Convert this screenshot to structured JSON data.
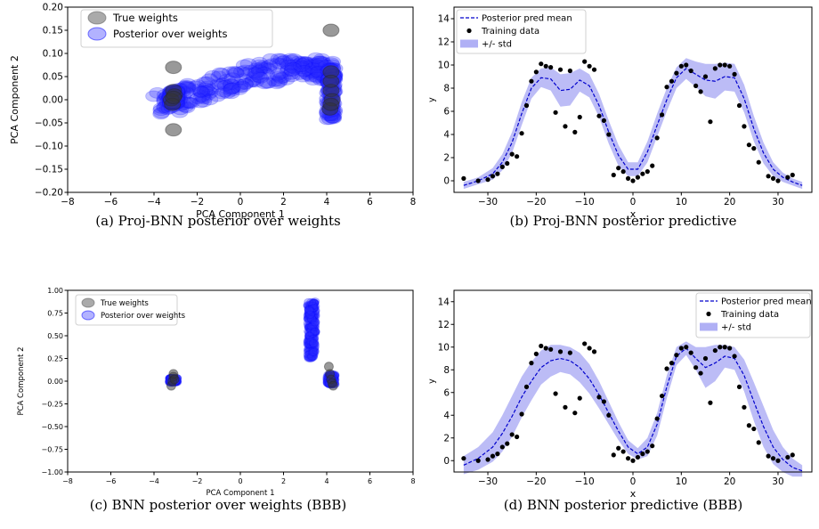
{
  "chart_data": [
    {
      "id": "a",
      "type": "scatter",
      "xlabel": "PCA Component 1",
      "ylabel": "PCA Component 2",
      "xlim": [
        -8,
        8
      ],
      "ylim": [
        -0.2,
        0.2
      ],
      "xticks": [
        -8,
        -6,
        -4,
        -2,
        0,
        2,
        4,
        6,
        8
      ],
      "xtick_labels": [
        "−8",
        "−6",
        "−4",
        "−2",
        "0",
        "2",
        "4",
        "6",
        "8"
      ],
      "yticks": [
        -0.2,
        -0.15,
        -0.1,
        -0.05,
        0,
        0.05,
        0.1,
        0.15,
        0.2
      ],
      "ytick_labels": [
        "−0.20",
        "−0.15",
        "−0.10",
        "−0.05",
        "0.00",
        "0.05",
        "0.10",
        "0.15",
        "0.20"
      ],
      "legend_position": "top-left",
      "legend": [
        {
          "label": "True weights",
          "color": "#555555",
          "marker": "ellipse"
        },
        {
          "label": "Posterior over weights",
          "color": "#0000ff",
          "marker": "ellipse"
        }
      ],
      "true_weights": {
        "x": [
          -3.1,
          -3.1,
          -3.1,
          -3.2,
          -3.05,
          -3.15,
          -3.1,
          4.2,
          4.2,
          4.2,
          4.25,
          4.15,
          4.2,
          4.2
        ],
        "y": [
          0.07,
          -0.065,
          0.02,
          0.0,
          0.01,
          -0.01,
          0.005,
          0.15,
          0.06,
          0.02,
          0.0,
          -0.02,
          0.04,
          -0.01
        ]
      },
      "posterior_curve": {
        "x": [
          -3.6,
          -3.0,
          -2.0,
          -1.0,
          0.0,
          1.0,
          2.0,
          3.0,
          3.6,
          4.2
        ],
        "y": [
          -0.01,
          0.0,
          0.015,
          0.03,
          0.045,
          0.055,
          0.065,
          0.07,
          0.065,
          0.06
        ]
      },
      "posterior_clusters": [
        {
          "x": -3.1,
          "y_range": [
            -0.01,
            0.02
          ]
        },
        {
          "x": 4.2,
          "y_range": [
            -0.045,
            0.07
          ]
        }
      ],
      "caption": "(a) Proj-BNN posterior over weights"
    },
    {
      "id": "b",
      "type": "line",
      "xlabel": "x",
      "ylabel": "y",
      "xlim": [
        -37,
        37
      ],
      "ylim": [
        -1,
        15
      ],
      "xticks": [
        -30,
        -20,
        -10,
        0,
        10,
        20,
        30
      ],
      "xtick_labels": [
        "−30",
        "−20",
        "−10",
        "0",
        "10",
        "20",
        "30"
      ],
      "yticks": [
        0,
        2,
        4,
        6,
        8,
        10,
        12,
        14
      ],
      "ytick_labels": [
        "0",
        "2",
        "4",
        "6",
        "8",
        "10",
        "12",
        "14"
      ],
      "legend_position": "top-left",
      "legend": [
        {
          "label": "Posterior pred mean",
          "color": "#0000cc",
          "marker": "dashed-line"
        },
        {
          "label": "Training data",
          "color": "#000000",
          "marker": "dot"
        },
        {
          "label": "+/- std",
          "color": "#b0b0f5",
          "marker": "patch"
        }
      ],
      "mean": {
        "x": [
          -35,
          -32,
          -29,
          -27,
          -25,
          -23,
          -21,
          -19,
          -17,
          -15,
          -13,
          -11,
          -9,
          -7,
          -5,
          -3,
          -1,
          1,
          3,
          5,
          7,
          9,
          11,
          13,
          15,
          17,
          19,
          21,
          23,
          25,
          27,
          29,
          31,
          33,
          35
        ],
        "y": [
          -0.4,
          0.0,
          0.6,
          1.6,
          3.3,
          5.8,
          8.0,
          8.9,
          8.8,
          7.8,
          7.9,
          8.7,
          8.2,
          6.5,
          4.2,
          2.2,
          1.0,
          1.0,
          2.5,
          4.8,
          7.0,
          8.9,
          9.7,
          9.2,
          8.7,
          8.6,
          9.0,
          8.9,
          7.1,
          4.5,
          2.4,
          1.0,
          0.3,
          -0.1,
          -0.4
        ]
      },
      "std": [
        0.3,
        0.3,
        0.5,
        0.7,
        0.9,
        1.0,
        0.9,
        0.8,
        1.0,
        1.4,
        1.4,
        1.0,
        1.0,
        1.0,
        1.0,
        0.9,
        0.6,
        0.6,
        0.9,
        1.0,
        1.0,
        0.9,
        0.9,
        1.1,
        1.4,
        1.5,
        1.2,
        1.2,
        1.2,
        1.1,
        0.9,
        0.6,
        0.4,
        0.3,
        0.3
      ],
      "training": {
        "x": [
          -35,
          -32,
          -30,
          -29,
          -28,
          -27,
          -26,
          -25,
          -24,
          -23,
          -22,
          -21,
          -20,
          -19,
          -18,
          -17,
          -16,
          -15,
          -14,
          -13,
          -12,
          -11,
          -10,
          -9,
          -8,
          -7,
          -6,
          -5,
          -4,
          -3,
          -2,
          -1,
          0,
          1,
          2,
          3,
          4,
          5,
          6,
          7,
          8,
          9,
          10,
          11,
          12,
          13,
          14,
          15,
          16,
          17,
          18,
          19,
          20,
          21,
          22,
          23,
          24,
          25,
          26,
          28,
          29,
          30,
          32,
          33
        ],
        "y": [
          0.2,
          0.0,
          0.1,
          0.4,
          0.6,
          1.2,
          1.5,
          2.3,
          2.1,
          4.1,
          6.5,
          8.6,
          9.4,
          10.1,
          9.9,
          9.8,
          5.9,
          9.6,
          4.7,
          9.5,
          4.2,
          5.5,
          10.3,
          9.9,
          9.6,
          5.6,
          5.2,
          4.0,
          0.5,
          1.1,
          0.8,
          0.2,
          0.0,
          0.3,
          0.6,
          0.8,
          1.3,
          3.7,
          5.7,
          8.1,
          8.6,
          9.3,
          9.9,
          10.0,
          9.5,
          8.2,
          7.7,
          9.0,
          5.1,
          9.7,
          10.0,
          10.0,
          9.9,
          9.2,
          6.5,
          4.7,
          3.1,
          2.8,
          1.6,
          0.4,
          0.2,
          0.0,
          0.3,
          0.5
        ]
      },
      "caption": "(b) Proj-BNN posterior predictive"
    },
    {
      "id": "c",
      "type": "scatter",
      "xlabel": "PCA Component 1",
      "ylabel": "PCA Component 2",
      "xlim": [
        -8,
        8
      ],
      "ylim": [
        -1,
        1
      ],
      "xticks": [
        -8,
        -6,
        -4,
        -2,
        0,
        2,
        4,
        6,
        8
      ],
      "xtick_labels": [
        "−8",
        "−6",
        "−4",
        "−2",
        "0",
        "2",
        "4",
        "6",
        "8"
      ],
      "yticks": [
        -1,
        -0.75,
        -0.5,
        -0.25,
        0,
        0.25,
        0.5,
        0.75,
        1
      ],
      "ytick_labels": [
        "−1.00",
        "−0.75",
        "−0.50",
        "−0.25",
        "0.00",
        "0.25",
        "0.50",
        "0.75",
        "1.00"
      ],
      "legend_position": "top-left",
      "legend": [
        {
          "label": "True weights",
          "color": "#555555",
          "marker": "ellipse"
        },
        {
          "label": "Posterior over weights",
          "color": "#0000ff",
          "marker": "ellipse"
        }
      ],
      "true_weights": {
        "x": [
          -3.2,
          -3.15,
          -3.1,
          -3.1,
          -3.05,
          4.1,
          4.15,
          4.2,
          4.25,
          4.3
        ],
        "y": [
          -0.05,
          0.0,
          0.05,
          0.08,
          0.02,
          0.16,
          0.08,
          0.02,
          -0.02,
          -0.05
        ]
      },
      "posterior_clusters": [
        {
          "x": 3.3,
          "y_range": [
            0.25,
            0.88
          ]
        },
        {
          "x": -3.1,
          "y_range": [
            -0.02,
            0.04
          ]
        },
        {
          "x": 4.2,
          "y_range": [
            -0.04,
            0.08
          ]
        }
      ],
      "caption": "(c) BNN posterior over weights (BBB)"
    },
    {
      "id": "d",
      "type": "line",
      "xlabel": "x",
      "ylabel": "y",
      "xlim": [
        -37,
        37
      ],
      "ylim": [
        -1,
        15
      ],
      "xticks": [
        -30,
        -20,
        -10,
        0,
        10,
        20,
        30
      ],
      "xtick_labels": [
        "−30",
        "−20",
        "−10",
        "0",
        "10",
        "20",
        "30"
      ],
      "yticks": [
        0,
        2,
        4,
        6,
        8,
        10,
        12,
        14
      ],
      "ytick_labels": [
        "0",
        "2",
        "4",
        "6",
        "8",
        "10",
        "12",
        "14"
      ],
      "legend_position": "top-right",
      "legend": [
        {
          "label": "Posterior pred mean",
          "color": "#0000cc",
          "marker": "dashed-line"
        },
        {
          "label": "Training data",
          "color": "#000000",
          "marker": "dot"
        },
        {
          "label": "+/- std",
          "color": "#b0b0f5",
          "marker": "patch"
        }
      ],
      "mean": {
        "x": [
          -35,
          -32,
          -29,
          -27,
          -25,
          -23,
          -21,
          -19,
          -17,
          -15,
          -13,
          -11,
          -9,
          -7,
          -5,
          -3,
          -1,
          1,
          3,
          5,
          7,
          9,
          11,
          13,
          15,
          17,
          19,
          21,
          23,
          25,
          27,
          29,
          31,
          33,
          35
        ],
        "y": [
          -0.4,
          0.2,
          1.2,
          2.4,
          3.9,
          5.6,
          7.0,
          8.2,
          8.8,
          9.0,
          8.8,
          8.2,
          7.2,
          5.8,
          4.2,
          2.6,
          1.2,
          0.6,
          1.2,
          3.2,
          6.5,
          9.2,
          9.9,
          9.0,
          8.2,
          8.6,
          9.2,
          9.0,
          7.5,
          5.2,
          3.0,
          1.2,
          0.1,
          -0.6,
          -0.9
        ]
      },
      "std": [
        0.8,
        1.0,
        1.3,
        1.6,
        1.8,
        1.8,
        1.7,
        1.5,
        1.4,
        1.2,
        1.2,
        1.3,
        1.3,
        1.2,
        1.0,
        0.8,
        0.6,
        0.5,
        0.8,
        1.0,
        1.0,
        0.8,
        0.6,
        1.0,
        1.8,
        1.6,
        1.0,
        1.0,
        1.4,
        1.7,
        1.8,
        1.5,
        1.1,
        0.8,
        0.5
      ],
      "training": {
        "x": [
          -35,
          -32,
          -30,
          -29,
          -28,
          -27,
          -26,
          -25,
          -24,
          -23,
          -22,
          -21,
          -20,
          -19,
          -18,
          -17,
          -16,
          -15,
          -14,
          -13,
          -12,
          -11,
          -10,
          -9,
          -8,
          -7,
          -6,
          -5,
          -4,
          -3,
          -2,
          -1,
          0,
          1,
          2,
          3,
          4,
          5,
          6,
          7,
          8,
          9,
          10,
          11,
          12,
          13,
          14,
          15,
          16,
          17,
          18,
          19,
          20,
          21,
          22,
          23,
          24,
          25,
          26,
          28,
          29,
          30,
          32,
          33
        ],
        "y": [
          0.2,
          0.0,
          0.1,
          0.4,
          0.6,
          1.2,
          1.5,
          2.3,
          2.1,
          4.1,
          6.5,
          8.6,
          9.4,
          10.1,
          9.9,
          9.8,
          5.9,
          9.6,
          4.7,
          9.5,
          4.2,
          5.5,
          10.3,
          9.9,
          9.6,
          5.6,
          5.2,
          4.0,
          0.5,
          1.1,
          0.8,
          0.2,
          0.0,
          0.3,
          0.6,
          0.8,
          1.3,
          3.7,
          5.7,
          8.1,
          8.6,
          9.3,
          9.9,
          10.0,
          9.5,
          8.2,
          7.7,
          9.0,
          5.1,
          9.7,
          10.0,
          10.0,
          9.9,
          9.2,
          6.5,
          4.7,
          3.1,
          2.8,
          1.6,
          0.4,
          0.2,
          0.0,
          0.3,
          0.5
        ]
      },
      "caption": "(d) BNN posterior predictive (BBB)"
    }
  ]
}
